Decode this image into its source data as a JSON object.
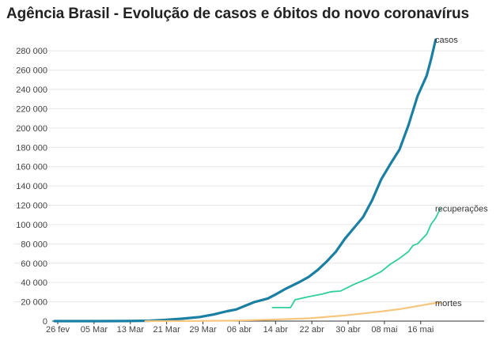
{
  "chart_data": {
    "type": "line",
    "title": "Agência Brasil - Evolução de casos e óbitos do novo coronavírus",
    "xlabel": "",
    "ylabel": "",
    "x": [
      "26 fev",
      "05 Mar",
      "13 Mar",
      "21 Mar",
      "29 Mar",
      "06 abr",
      "14 abr",
      "22 abr",
      "30 abr",
      "08 mai",
      "16 mai"
    ],
    "x_date_range": [
      "2020-02-26",
      "2020-05-19"
    ],
    "ylim": [
      0,
      290000
    ],
    "yticks": [
      {
        "value": 0,
        "label": "0"
      },
      {
        "value": 20000,
        "label": "20 000"
      },
      {
        "value": 40000,
        "label": "40 000"
      },
      {
        "value": 60000,
        "label": "60 000"
      },
      {
        "value": 80000,
        "label": "80 000"
      },
      {
        "value": 100000,
        "label": "100 000"
      },
      {
        "value": 120000,
        "label": "120 000"
      },
      {
        "value": 140000,
        "label": "140 000"
      },
      {
        "value": 160000,
        "label": "160 000"
      },
      {
        "value": 180000,
        "label": "180 000"
      },
      {
        "value": 200000,
        "label": "200 000"
      },
      {
        "value": 220000,
        "label": "220 000"
      },
      {
        "value": 240000,
        "label": "240 000"
      },
      {
        "value": 260000,
        "label": "260 000"
      },
      {
        "value": 280000,
        "label": "280 000"
      }
    ],
    "grid": true,
    "series": [
      {
        "name": "casos",
        "color": "#1a7fa3",
        "points": [
          [
            "2020-02-26",
            1
          ],
          [
            "2020-03-05",
            8
          ],
          [
            "2020-03-13",
            98
          ],
          [
            "2020-03-18",
            428
          ],
          [
            "2020-03-21",
            1128
          ],
          [
            "2020-03-25",
            2433
          ],
          [
            "2020-03-29",
            4256
          ],
          [
            "2020-04-01",
            6836
          ],
          [
            "2020-04-04",
            10278
          ],
          [
            "2020-04-06",
            12056
          ],
          [
            "2020-04-08",
            15927
          ],
          [
            "2020-04-10",
            19638
          ],
          [
            "2020-04-13",
            23430
          ],
          [
            "2020-04-15",
            28320
          ],
          [
            "2020-04-17",
            33682
          ],
          [
            "2020-04-20",
            40581
          ],
          [
            "2020-04-22",
            45757
          ],
          [
            "2020-04-24",
            52995
          ],
          [
            "2020-04-26",
            61888
          ],
          [
            "2020-04-28",
            71886
          ],
          [
            "2020-04-30",
            85380
          ],
          [
            "2020-05-02",
            96559
          ],
          [
            "2020-05-04",
            107780
          ],
          [
            "2020-05-06",
            125218
          ],
          [
            "2020-05-08",
            146894
          ],
          [
            "2020-05-10",
            162699
          ],
          [
            "2020-05-12",
            177589
          ],
          [
            "2020-05-14",
            202918
          ],
          [
            "2020-05-16",
            233142
          ],
          [
            "2020-05-18",
            254220
          ],
          [
            "2020-05-19",
            271628
          ],
          [
            "2020-05-20",
            291579
          ]
        ]
      },
      {
        "name": "recuperações",
        "color": "#2ecf9a",
        "points": [
          [
            "2020-04-14",
            14026
          ],
          [
            "2020-04-18",
            14026
          ],
          [
            "2020-04-19",
            22130
          ],
          [
            "2020-04-22",
            25318
          ],
          [
            "2020-04-25",
            28000
          ],
          [
            "2020-04-27",
            30500
          ],
          [
            "2020-04-29",
            31142
          ],
          [
            "2020-05-02",
            38039
          ],
          [
            "2020-05-05",
            44000
          ],
          [
            "2020-05-08",
            51370
          ],
          [
            "2020-05-10",
            59000
          ],
          [
            "2020-05-12",
            65000
          ],
          [
            "2020-05-14",
            72000
          ],
          [
            "2020-05-15",
            78424
          ],
          [
            "2020-05-16",
            80000
          ],
          [
            "2020-05-18",
            90000
          ],
          [
            "2020-05-19",
            100459
          ],
          [
            "2020-05-20",
            106794
          ],
          [
            "2020-05-21",
            116683
          ]
        ]
      },
      {
        "name": "mortes",
        "color": "#f6c67e",
        "points": [
          [
            "2020-03-17",
            0
          ],
          [
            "2020-03-21",
            18
          ],
          [
            "2020-03-29",
            136
          ],
          [
            "2020-04-06",
            553
          ],
          [
            "2020-04-14",
            1532
          ],
          [
            "2020-04-22",
            2906
          ],
          [
            "2020-04-30",
            5901
          ],
          [
            "2020-05-08",
            10017
          ],
          [
            "2020-05-12",
            12400
          ],
          [
            "2020-05-16",
            15633
          ],
          [
            "2020-05-20",
            18859
          ],
          [
            "2020-05-21",
            19000
          ]
        ]
      }
    ]
  }
}
